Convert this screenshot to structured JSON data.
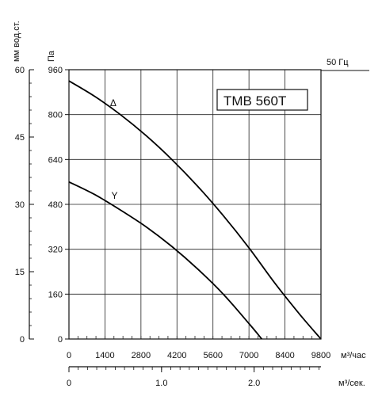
{
  "chart_data": {
    "type": "line",
    "model_label": "TMB 560T",
    "frequency_label": "50 Гц",
    "units": {
      "left_outer": "мм вод.ст.",
      "left_inner": "Па",
      "x_main": "м³/час",
      "x_secondary": "м³/сек."
    },
    "x_ticks": [
      "0",
      "1400",
      "2800",
      "4200",
      "5600",
      "7000",
      "8400",
      "9800"
    ],
    "x_range": [
      0,
      9800
    ],
    "y_ticks": [
      "0",
      "160",
      "320",
      "480",
      "640",
      "800",
      "960"
    ],
    "y_range": [
      0,
      960
    ],
    "y_mm_ticks": [
      "0",
      "15",
      "30",
      "45",
      "60"
    ],
    "y_mm_range": [
      0,
      60
    ],
    "x_sec_ticks": [
      "0",
      "1.0",
      "2.0"
    ],
    "x_sec_range": [
      0,
      2.7222
    ],
    "grid": true,
    "series": [
      {
        "name": "Δ",
        "points": [
          [
            0,
            920
          ],
          [
            1000,
            865
          ],
          [
            2000,
            800
          ],
          [
            3000,
            725
          ],
          [
            4000,
            640
          ],
          [
            5000,
            545
          ],
          [
            6000,
            440
          ],
          [
            7000,
            325
          ],
          [
            8000,
            200
          ],
          [
            9000,
            85
          ],
          [
            9800,
            0
          ]
        ]
      },
      {
        "name": "Y",
        "points": [
          [
            0,
            560
          ],
          [
            1000,
            515
          ],
          [
            2000,
            460
          ],
          [
            3000,
            400
          ],
          [
            4000,
            330
          ],
          [
            5000,
            250
          ],
          [
            6000,
            160
          ],
          [
            7000,
            55
          ],
          [
            7500,
            0
          ]
        ]
      }
    ]
  }
}
